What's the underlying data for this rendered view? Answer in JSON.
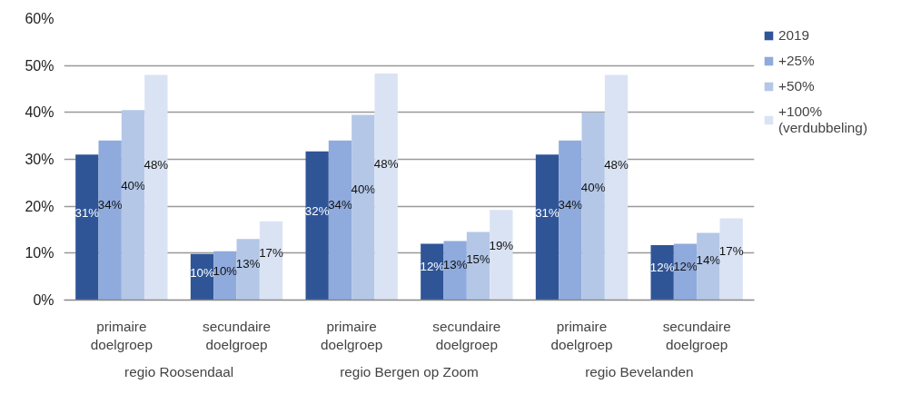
{
  "chart_data": {
    "type": "bar",
    "categories": [
      "primaire\ndoelgroep",
      "secundaire\ndoelgroep",
      "primaire\ndoelgroep",
      "secundaire\ndoelgroep",
      "primaire\ndoelgroep",
      "secundaire\ndoelgroep"
    ],
    "annotations": [
      "regio Roosendaal",
      "regio Bergen op Zoom",
      "regio Bevelanden"
    ],
    "series": [
      {
        "name": "2019",
        "color": "#2f5597",
        "values": [
          31,
          9.8,
          31.7,
          12,
          31,
          11.7
        ],
        "value_labels": [
          "31%",
          "10%",
          "32%",
          "12%",
          "31%",
          "12%"
        ]
      },
      {
        "name": "+25%",
        "color": "#8faadc",
        "values": [
          34,
          10.4,
          34,
          12.6,
          34,
          12
        ],
        "value_labels": [
          "34%",
          "10%",
          "34%",
          "13%",
          "34%",
          "12%"
        ]
      },
      {
        "name": "+50%",
        "color": "#b4c7e7",
        "values": [
          40.5,
          13,
          39.5,
          14.5,
          40,
          14.3
        ],
        "value_labels": [
          "40%",
          "13%",
          "40%",
          "15%",
          "40%",
          "14%"
        ]
      },
      {
        "name": "+100%\n(verdubbeling)",
        "color": "#dae3f3",
        "values": [
          48,
          16.8,
          48.3,
          19.2,
          48,
          17.4
        ],
        "value_labels": [
          "48%",
          "17%",
          "48%",
          "19%",
          "48%",
          "17%"
        ]
      }
    ],
    "ylim": [
      0,
      60
    ],
    "yticks": [
      {
        "value": 0,
        "label": "0%"
      },
      {
        "value": 10,
        "label": "10%"
      },
      {
        "value": 20,
        "label": "20%"
      },
      {
        "value": 30,
        "label": "30%"
      },
      {
        "value": 40,
        "label": "40%"
      },
      {
        "value": 50,
        "label": "50%"
      },
      {
        "value": 60,
        "label": "60%"
      }
    ],
    "grid": "y",
    "legend": "top right"
  }
}
